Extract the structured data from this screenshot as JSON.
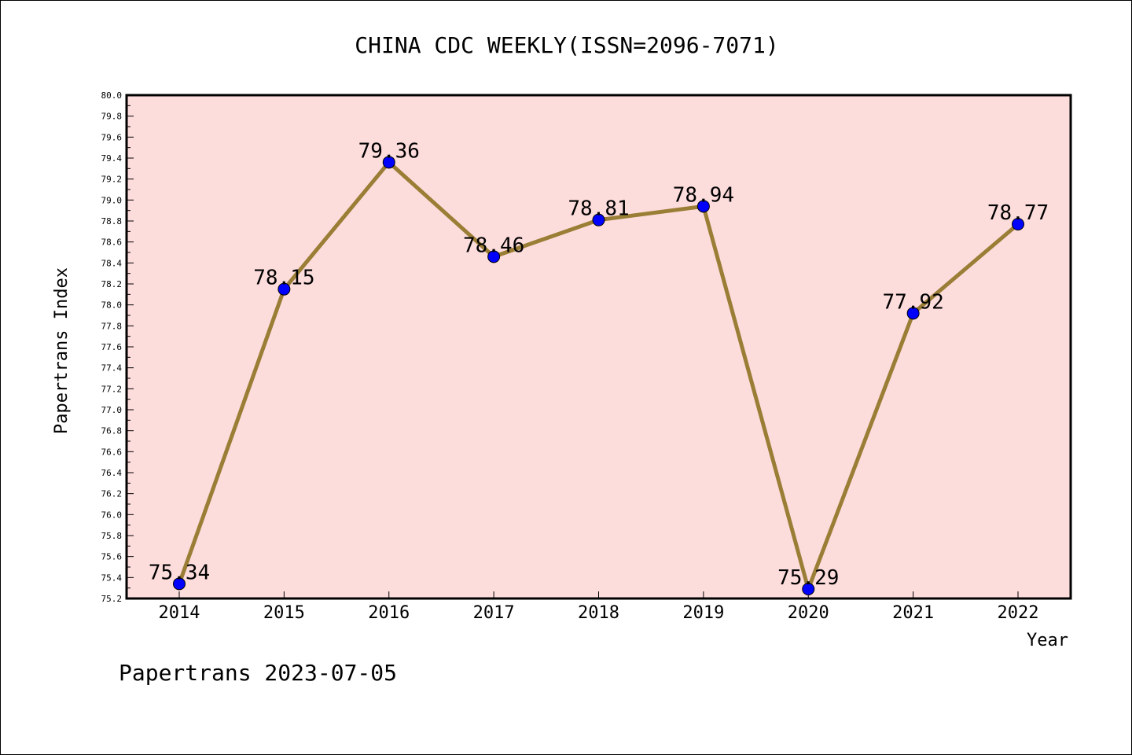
{
  "title": "CHINA CDC WEEKLY(ISSN=2096-7071)",
  "footer": "Papertrans 2023-07-05",
  "colors": {
    "plot_background": "#fddcdc",
    "line": "#9a7e36",
    "marker": "#0000ff"
  },
  "chart_data": {
    "type": "line",
    "title": "CHINA CDC WEEKLY(ISSN=2096-7071)",
    "xlabel": "Year",
    "ylabel": "Papertrans Index",
    "categories": [
      "2014",
      "2015",
      "2016",
      "2017",
      "2018",
      "2019",
      "2020",
      "2021",
      "2022"
    ],
    "series": [
      {
        "values": [
          75.34,
          78.15,
          79.36,
          78.46,
          78.81,
          78.94,
          75.29,
          77.92,
          78.77
        ],
        "labels": [
          "75.34",
          "78.15",
          "79.36",
          "78.46",
          "78.81",
          "78.94",
          "75.29",
          "77.92",
          "78.77"
        ]
      }
    ],
    "ylim": [
      75.2,
      80.0
    ],
    "yticks": [
      "75.2",
      "75.4",
      "75.6",
      "75.8",
      "76.0",
      "76.2",
      "76.4",
      "76.6",
      "76.8",
      "77.0",
      "77.2",
      "77.4",
      "77.6",
      "77.8",
      "78.0",
      "78.2",
      "78.4",
      "78.6",
      "78.8",
      "79.0",
      "79.2",
      "79.4",
      "79.6",
      "79.8",
      "80.0"
    ],
    "grid": false,
    "legend": "none"
  }
}
